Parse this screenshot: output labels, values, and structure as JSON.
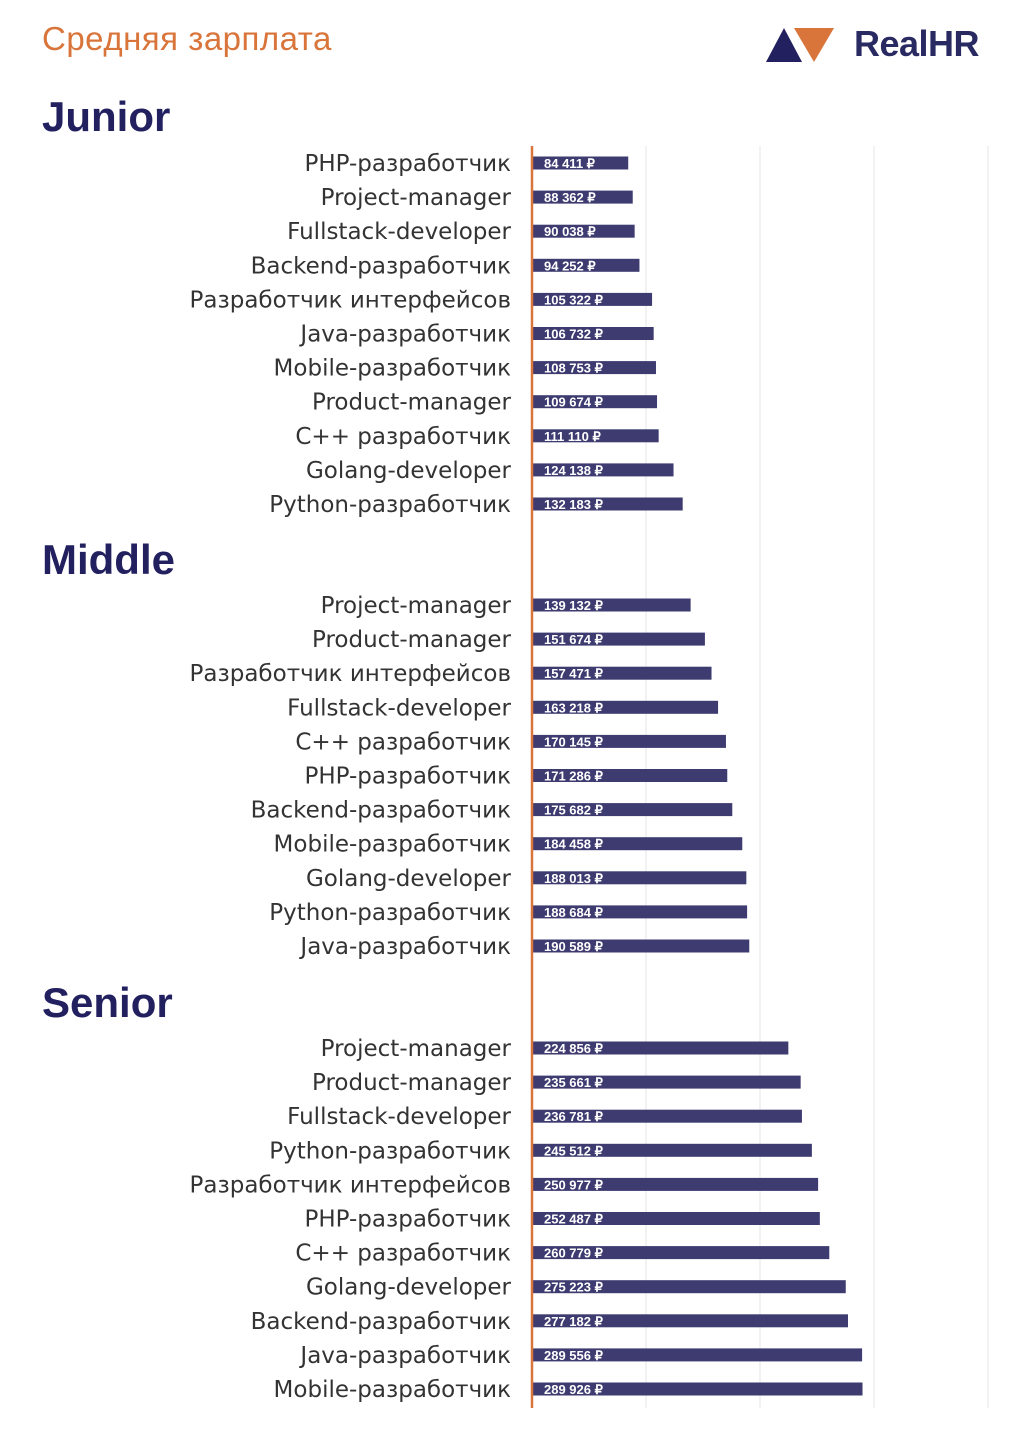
{
  "header": {
    "title": "Средняя зарплата"
  },
  "logo": {
    "text": "RealHR"
  },
  "colors": {
    "bar": "#3d3b70",
    "axis": "#d9743a",
    "title": "#d9743a",
    "heading": "#232060",
    "grid": "#e6e6e6"
  },
  "chart_data": {
    "type": "bar",
    "orientation": "horizontal",
    "grid": true,
    "xlim": [
      0,
      400000
    ],
    "unit": "₽",
    "groups": [
      {
        "name": "Junior",
        "categories": [
          "PHP-разработчик",
          "Project-manager",
          "Fullstack-developer",
          "Backend-разработчик",
          "Разработчик интерфейсов",
          "Java-разработчик",
          "Mobile-разработчик",
          "Product-manager",
          "C++ разработчик",
          "Golang-developer",
          "Python-разработчик"
        ],
        "values": [
          84411,
          88362,
          90038,
          94252,
          105322,
          106732,
          108753,
          109674,
          111110,
          124138,
          132183
        ],
        "labels": [
          "84 411 ₽",
          "88 362 ₽",
          "90 038 ₽",
          "94 252 ₽",
          "105 322 ₽",
          "106 732 ₽",
          "108 753 ₽",
          "109 674 ₽",
          "111 110 ₽",
          "124 138 ₽",
          "132 183 ₽"
        ]
      },
      {
        "name": "Middle",
        "categories": [
          "Project-manager",
          "Product-manager",
          "Разработчик интерфейсов",
          "Fullstack-developer",
          "C++ разработчик",
          "PHP-разработчик",
          "Backend-разработчик",
          "Mobile-разработчик",
          "Golang-developer",
          "Python-разработчик",
          "Java-разработчик"
        ],
        "values": [
          139132,
          151674,
          157471,
          163218,
          170145,
          171286,
          175682,
          184458,
          188013,
          188684,
          190589
        ],
        "labels": [
          "139 132 ₽",
          "151 674 ₽",
          "157 471 ₽",
          "163 218 ₽",
          "170 145 ₽",
          "171 286 ₽",
          "175 682 ₽",
          "184 458 ₽",
          "188 013 ₽",
          "188 684 ₽",
          "190 589 ₽"
        ]
      },
      {
        "name": "Senior",
        "categories": [
          "Project-manager",
          "Product-manager",
          "Fullstack-developer",
          "Python-разработчик",
          "Разработчик интерфейсов",
          "PHP-разработчик",
          "C++ разработчик",
          "Golang-developer",
          "Backend-разработчик",
          "Java-разработчик",
          "Mobile-разработчик"
        ],
        "values": [
          224856,
          235661,
          236781,
          245512,
          250977,
          252487,
          260779,
          275223,
          277182,
          289556,
          289926
        ],
        "labels": [
          "224 856 ₽",
          "235 661 ₽",
          "236 781 ₽",
          "245 512 ₽",
          "250 977 ₽",
          "252 487 ₽",
          "260 779 ₽",
          "275 223 ₽",
          "277 182 ₽",
          "289 556 ₽",
          "289 926 ₽"
        ]
      }
    ]
  }
}
